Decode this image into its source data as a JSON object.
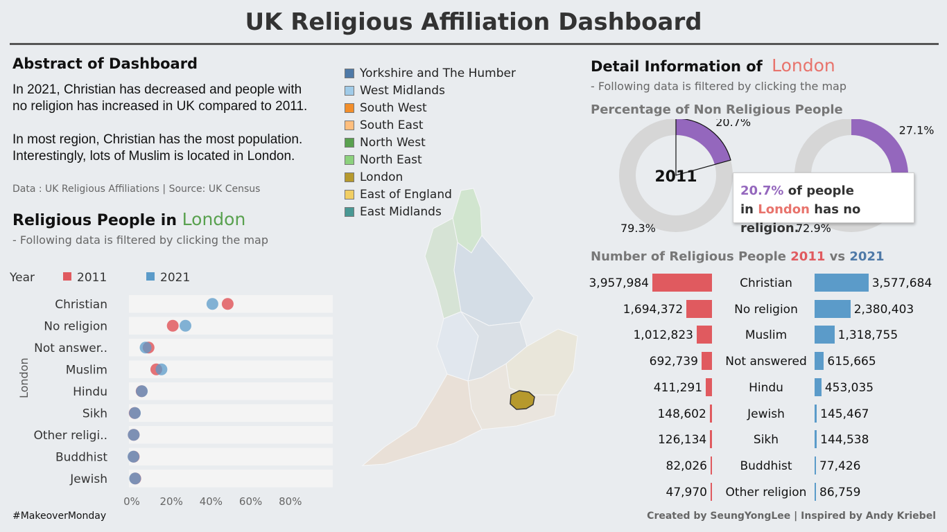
{
  "header": {
    "title": "UK Religious Affiliation Dashboard"
  },
  "abstract": {
    "heading": "Abstract of Dashboard",
    "p1_line1": "In 2021, Christian has decreased  and people with",
    "p1_line2": "no religion has increased in UK compared to 2011.",
    "p2_line1": "In most region, Christian has the most population.",
    "p2_line2": "Interestingly, lots of Muslim is located in London.",
    "source": "Data : UK Religious Affiliations  | Source: UK Census"
  },
  "religious_people": {
    "heading_prefix": "Religious People in",
    "region": "London",
    "subtitle": "- Following data is filtered by clicking the map",
    "legend_title": "Year",
    "legend_2011": "2011",
    "legend_2021": "2021",
    "side_label": "London"
  },
  "region_legend": [
    {
      "label": "Yorkshire and The Humber",
      "color": "#4e79a7"
    },
    {
      "label": "West Midlands",
      "color": "#a0cbe8"
    },
    {
      "label": "South West",
      "color": "#f28e2b"
    },
    {
      "label": "South East",
      "color": "#ffbe7d"
    },
    {
      "label": "North West",
      "color": "#59a14f"
    },
    {
      "label": "North East",
      "color": "#8cd17d"
    },
    {
      "label": "London",
      "color": "#b6992d"
    },
    {
      "label": "East of England",
      "color": "#f1ce63"
    },
    {
      "label": "East Midlands",
      "color": "#499894"
    }
  ],
  "detail": {
    "heading_prefix": "Detail Information of",
    "region": "London",
    "subtitle": "- Following data is filtered by clicking the map",
    "donut_title": "Percentage of Non Religious People",
    "donut_center": "2011",
    "tooltip_pct": "20.7%",
    "tooltip_text1": "of people",
    "tooltip_in": "in",
    "tooltip_region": "London",
    "tooltip_text2": "has no religion.",
    "bar_title_prefix": "Number of Religious People",
    "bar_title_2011": "2011",
    "bar_title_vs": "vs",
    "bar_title_2021": "2021"
  },
  "colors": {
    "c2011": "#e05a5f",
    "c2021": "#5b9bc9",
    "green": "#59a14f",
    "coral": "#e8736c",
    "donut": "#9467bd",
    "london": "#b6992d"
  },
  "chart_data": [
    {
      "type": "scatter",
      "title": "Religious People in London",
      "ylabel": "London",
      "categories": [
        "Christian",
        "No religion",
        "Not answer..",
        "Muslim",
        "Hindu",
        "Sikh",
        "Other religi..",
        "Buddhist",
        "Jewish"
      ],
      "x_ticks": [
        "0%",
        "20%",
        "40%",
        "60%",
        "80%"
      ],
      "xlim": [
        0,
        100
      ],
      "series": [
        {
          "name": "2011",
          "values": [
            48.4,
            20.7,
            8.5,
            12.4,
            5.0,
            1.5,
            1.0,
            1.0,
            1.8
          ]
        },
        {
          "name": "2021",
          "values": [
            40.7,
            27.1,
            7.0,
            15.0,
            5.1,
            1.6,
            1.0,
            0.9,
            1.7
          ]
        }
      ]
    },
    {
      "type": "pie",
      "title": "Percentage of Non Religious People",
      "charts": [
        {
          "center_label": "2011",
          "values": [
            20.7,
            79.3
          ],
          "labels": [
            "20.7%",
            "79.3%"
          ]
        },
        {
          "center_label": "",
          "values": [
            27.1,
            72.9
          ],
          "labels": [
            "27.1%",
            "72.9%"
          ]
        }
      ]
    },
    {
      "type": "bar",
      "title": "Number of Religious People 2011 vs 2021",
      "categories": [
        "Christian",
        "No religion",
        "Muslim",
        "Not answered",
        "Hindu",
        "Jewish",
        "Sikh",
        "Buddhist",
        "Other religion"
      ],
      "series": [
        {
          "name": "2011",
          "values": [
            3957984,
            1694372,
            1012823,
            692739,
            411291,
            148602,
            126134,
            82026,
            47970
          ],
          "labels": [
            "3,957,984",
            "1,694,372",
            "1,012,823",
            "692,739",
            "411,291",
            "148,602",
            "126,134",
            "82,026",
            "47,970"
          ]
        },
        {
          "name": "2021",
          "values": [
            3577684,
            2380403,
            1318755,
            615665,
            453035,
            145467,
            144538,
            77426,
            86759
          ],
          "labels": [
            "3,577,684",
            "2,380,403",
            "1,318,755",
            "615,665",
            "453,035",
            "145,467",
            "144,538",
            "77,426",
            "86,759"
          ]
        }
      ]
    }
  ],
  "footer": {
    "left": "#MakeoverMonday",
    "right": "Created by SeungYongLee | Inspired by Andy Kriebel"
  }
}
